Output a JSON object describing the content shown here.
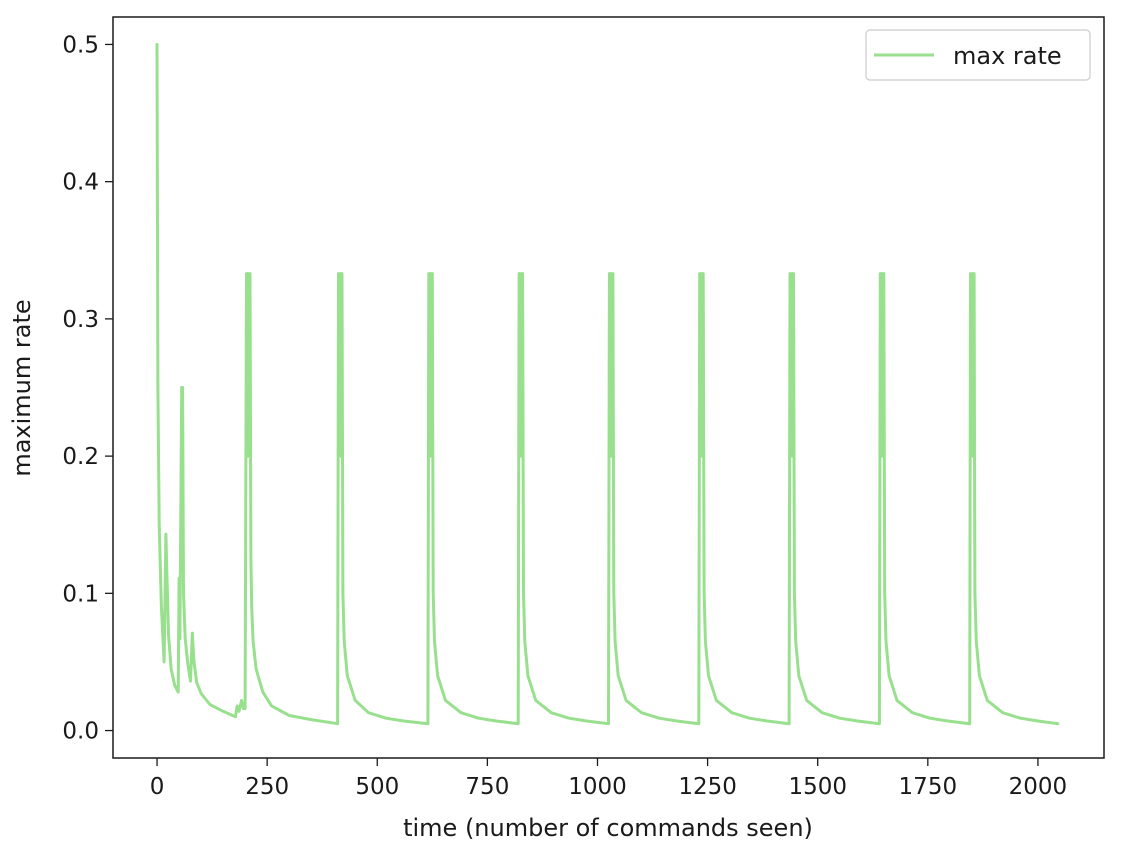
{
  "chart_data": {
    "type": "line",
    "title": "",
    "xlabel": "time (number of commands seen)",
    "ylabel": "maximum rate",
    "xlim": [
      -100,
      2150
    ],
    "ylim": [
      -0.02,
      0.52
    ],
    "xticks": [
      0,
      250,
      500,
      750,
      1000,
      1250,
      1500,
      1750,
      2000
    ],
    "yticks": [
      0.0,
      0.1,
      0.2,
      0.3,
      0.4,
      0.5
    ],
    "xtick_labels": [
      "0",
      "250",
      "500",
      "750",
      "1000",
      "1250",
      "1500",
      "1750",
      "2000"
    ],
    "ytick_labels": [
      "0.0",
      "0.1",
      "0.2",
      "0.3",
      "0.4",
      "0.5"
    ],
    "grid": false,
    "legend": {
      "position": "top-right",
      "entries": [
        "max rate"
      ]
    },
    "series": [
      {
        "name": "max rate",
        "color": "#98e08e",
        "x": [
          0,
          2,
          5,
          10,
          16,
          20,
          22,
          26,
          32,
          40,
          48,
          50,
          52,
          56,
          58,
          60,
          64,
          70,
          76,
          80,
          84,
          90,
          100,
          120,
          150,
          178,
          182,
          186,
          192,
          196,
          200,
          203,
          205,
          207,
          209,
          211,
          213,
          215,
          218,
          225,
          240,
          260,
          300,
          350,
          410,
          412,
          414,
          416,
          418,
          420,
          422,
          425,
          432,
          450,
          480,
          520,
          560,
          615,
          617,
          619,
          621,
          623,
          625,
          627,
          630,
          637,
          655,
          690,
          730,
          770,
          820,
          822,
          824,
          826,
          828,
          830,
          832,
          835,
          842,
          860,
          895,
          935,
          975,
          1025,
          1027,
          1029,
          1031,
          1033,
          1035,
          1037,
          1040,
          1047,
          1065,
          1100,
          1140,
          1180,
          1230,
          1232,
          1234,
          1236,
          1238,
          1240,
          1242,
          1245,
          1252,
          1270,
          1305,
          1345,
          1385,
          1435,
          1437,
          1439,
          1441,
          1443,
          1445,
          1447,
          1450,
          1457,
          1475,
          1510,
          1550,
          1590,
          1640,
          1642,
          1644,
          1646,
          1648,
          1650,
          1652,
          1655,
          1662,
          1680,
          1715,
          1755,
          1795,
          1845,
          1847,
          1849,
          1851,
          1853,
          1855,
          1857,
          1860,
          1867,
          1885,
          1920,
          1960,
          2000,
          2045
        ],
        "y": [
          0.5,
          0.25,
          0.15,
          0.09,
          0.05,
          0.143,
          0.12,
          0.07,
          0.045,
          0.033,
          0.028,
          0.111,
          0.067,
          0.25,
          0.25,
          0.1,
          0.067,
          0.048,
          0.036,
          0.071,
          0.05,
          0.035,
          0.027,
          0.019,
          0.014,
          0.01,
          0.018,
          0.014,
          0.022,
          0.016,
          0.016,
          0.333,
          0.333,
          0.2,
          0.333,
          0.333,
          0.125,
          0.09,
          0.065,
          0.045,
          0.028,
          0.018,
          0.011,
          0.008,
          0.005,
          0.333,
          0.333,
          0.2,
          0.333,
          0.333,
          0.1,
          0.065,
          0.04,
          0.022,
          0.013,
          0.009,
          0.007,
          0.005,
          0.333,
          0.333,
          0.2,
          0.333,
          0.333,
          0.1,
          0.065,
          0.04,
          0.022,
          0.013,
          0.009,
          0.007,
          0.005,
          0.333,
          0.333,
          0.2,
          0.333,
          0.333,
          0.1,
          0.065,
          0.04,
          0.022,
          0.013,
          0.009,
          0.007,
          0.005,
          0.333,
          0.333,
          0.2,
          0.333,
          0.333,
          0.1,
          0.065,
          0.04,
          0.022,
          0.013,
          0.009,
          0.007,
          0.005,
          0.333,
          0.333,
          0.2,
          0.333,
          0.333,
          0.1,
          0.065,
          0.04,
          0.022,
          0.013,
          0.009,
          0.007,
          0.005,
          0.333,
          0.333,
          0.2,
          0.333,
          0.333,
          0.1,
          0.065,
          0.04,
          0.022,
          0.013,
          0.009,
          0.007,
          0.005,
          0.333,
          0.333,
          0.2,
          0.333,
          0.333,
          0.1,
          0.065,
          0.04,
          0.022,
          0.013,
          0.009,
          0.007,
          0.005,
          0.333,
          0.333,
          0.2,
          0.333,
          0.333,
          0.1,
          0.065,
          0.04,
          0.022,
          0.013,
          0.009,
          0.007,
          0.005
        ]
      }
    ]
  }
}
